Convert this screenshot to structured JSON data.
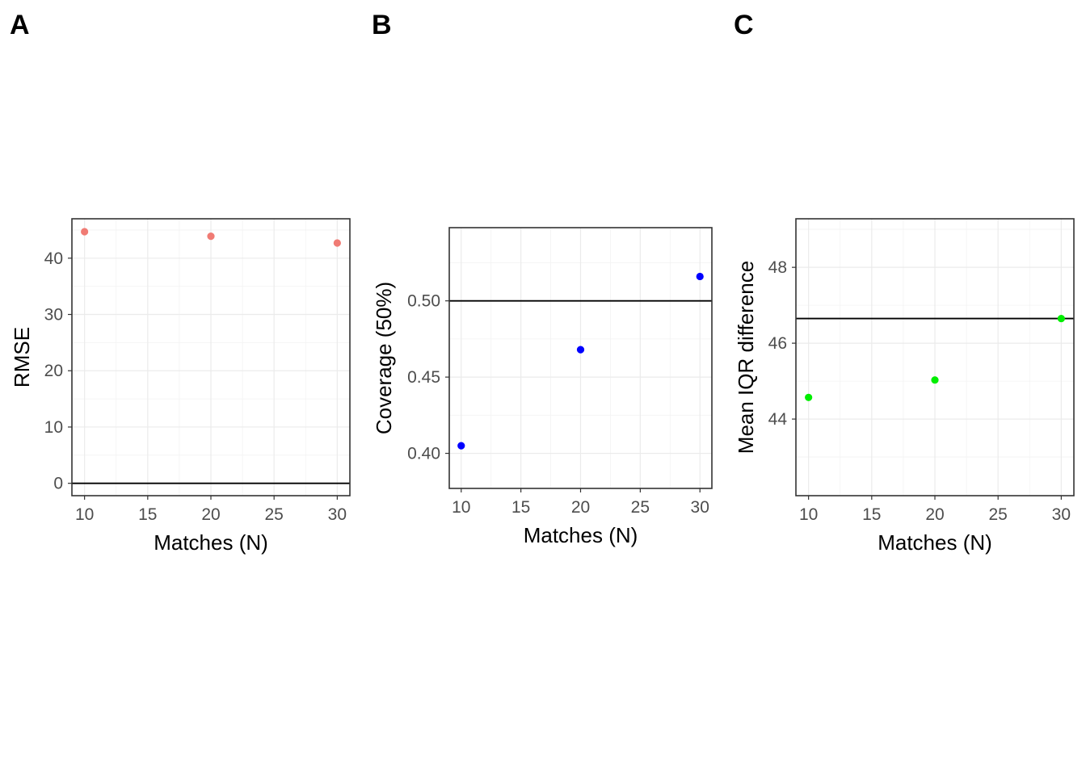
{
  "chart_data": [
    {
      "type": "scatter",
      "panel_label": "A",
      "xlabel": "Matches (N)",
      "ylabel": "RMSE",
      "x": [
        10,
        20,
        30
      ],
      "y": [
        44.7,
        43.9,
        42.7
      ],
      "xlim": [
        9,
        31
      ],
      "ylim": [
        -2.2,
        47
      ],
      "xticks": [
        10,
        15,
        20,
        25,
        30
      ],
      "xtick_labels": [
        "10",
        "15",
        "20",
        "25",
        "30"
      ],
      "yticks": [
        0,
        10,
        20,
        30,
        40
      ],
      "ytick_labels": [
        "0",
        "10",
        "20",
        "30",
        "40"
      ],
      "hline": 0,
      "point_color": "#f07b74",
      "grid": true
    },
    {
      "type": "scatter",
      "panel_label": "B",
      "xlabel": "Matches (N)",
      "ylabel": "Coverage (50%)",
      "x": [
        10,
        20,
        30
      ],
      "y": [
        0.405,
        0.468,
        0.516
      ],
      "xlim": [
        9,
        31
      ],
      "ylim": [
        0.377,
        0.548
      ],
      "xticks": [
        10,
        15,
        20,
        25,
        30
      ],
      "xtick_labels": [
        "10",
        "15",
        "20",
        "25",
        "30"
      ],
      "yticks": [
        0.4,
        0.45,
        0.5
      ],
      "ytick_labels": [
        "0.40",
        "0.45",
        "0.50"
      ],
      "hline": 0.5,
      "point_color": "#0000ff",
      "grid": true
    },
    {
      "type": "scatter",
      "panel_label": "C",
      "xlabel": "Matches (N)",
      "ylabel": "Mean IQR difference",
      "x": [
        10,
        20,
        30
      ],
      "y": [
        44.57,
        45.03,
        46.65
      ],
      "xlim": [
        9,
        31
      ],
      "ylim": [
        41.98,
        49.28
      ],
      "xticks": [
        10,
        15,
        20,
        25,
        30
      ],
      "xtick_labels": [
        "10",
        "15",
        "20",
        "25",
        "30"
      ],
      "yticks": [
        44,
        46,
        48
      ],
      "ytick_labels": [
        "44",
        "46",
        "48"
      ],
      "hline": 46.65,
      "point_color": "#00ee00",
      "grid": true
    }
  ]
}
